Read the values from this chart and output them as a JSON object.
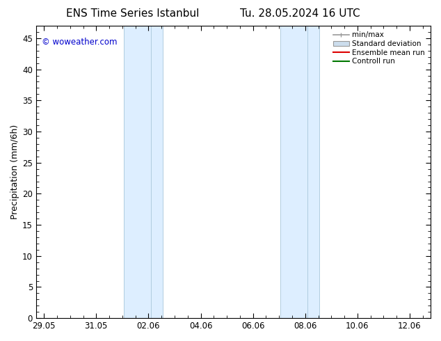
{
  "title_left": "ENS Time Series Istanbul",
  "title_right": "Tu. 28.05.2024 16 UTC",
  "ylabel": "Precipitation (mm/6h)",
  "ylim": [
    0,
    47
  ],
  "xtick_labels": [
    "29.05",
    "31.05",
    "02.06",
    "04.06",
    "06.06",
    "08.06",
    "10.06",
    "12.06"
  ],
  "xtick_positions": [
    0,
    2,
    4,
    6,
    8,
    10,
    12,
    14
  ],
  "xlim_min": -0.3,
  "xlim_max": 14.8,
  "ytick_positions": [
    0,
    5,
    10,
    15,
    20,
    25,
    30,
    35,
    40,
    45
  ],
  "shaded_bands": [
    {
      "x_start": 3.05,
      "x_end": 4.1
    },
    {
      "x_start": 4.1,
      "x_end": 4.55
    },
    {
      "x_start": 9.05,
      "x_end": 10.1
    },
    {
      "x_start": 10.1,
      "x_end": 10.55
    }
  ],
  "band_color": "#ddeeff",
  "band_edge_color": "#b0cce0",
  "watermark": "© woweather.com",
  "watermark_color": "#0000cc",
  "background_color": "#ffffff",
  "title_fontsize": 11,
  "tick_fontsize": 8.5,
  "ylabel_fontsize": 9,
  "legend_fontsize": 7.5
}
